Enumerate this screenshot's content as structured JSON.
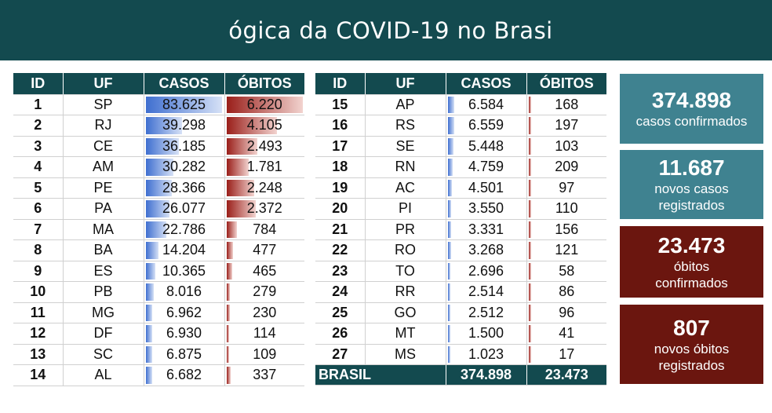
{
  "header": {
    "title": "ógica da COVID-19 no Brasi"
  },
  "columns": {
    "id": "ID",
    "uf": "UF",
    "casos": "CASOS",
    "obitos": "ÓBITOS"
  },
  "left_rows": [
    {
      "id": "1",
      "uf": "SP",
      "casos": "83.625",
      "obitos": "6.220",
      "casos_frac": 1.0,
      "obitos_frac": 1.0
    },
    {
      "id": "2",
      "uf": "RJ",
      "casos": "39.298",
      "obitos": "4.105",
      "casos_frac": 0.47,
      "obitos_frac": 0.66
    },
    {
      "id": "3",
      "uf": "CE",
      "casos": "36.185",
      "obitos": "2.493",
      "casos_frac": 0.43,
      "obitos_frac": 0.4
    },
    {
      "id": "4",
      "uf": "AM",
      "casos": "30.282",
      "obitos": "1.781",
      "casos_frac": 0.36,
      "obitos_frac": 0.29
    },
    {
      "id": "5",
      "uf": "PE",
      "casos": "28.366",
      "obitos": "2.248",
      "casos_frac": 0.34,
      "obitos_frac": 0.36
    },
    {
      "id": "6",
      "uf": "PA",
      "casos": "26.077",
      "obitos": "2.372",
      "casos_frac": 0.31,
      "obitos_frac": 0.38
    },
    {
      "id": "7",
      "uf": "MA",
      "casos": "22.786",
      "obitos": "784",
      "casos_frac": 0.27,
      "obitos_frac": 0.13
    },
    {
      "id": "8",
      "uf": "BA",
      "casos": "14.204",
      "obitos": "477",
      "casos_frac": 0.17,
      "obitos_frac": 0.08
    },
    {
      "id": "9",
      "uf": "ES",
      "casos": "10.365",
      "obitos": "465",
      "casos_frac": 0.12,
      "obitos_frac": 0.07
    },
    {
      "id": "10",
      "uf": "PB",
      "casos": "8.016",
      "obitos": "279",
      "casos_frac": 0.1,
      "obitos_frac": 0.04
    },
    {
      "id": "11",
      "uf": "MG",
      "casos": "6.962",
      "obitos": "230",
      "casos_frac": 0.08,
      "obitos_frac": 0.04
    },
    {
      "id": "12",
      "uf": "DF",
      "casos": "6.930",
      "obitos": "114",
      "casos_frac": 0.08,
      "obitos_frac": 0.02
    },
    {
      "id": "13",
      "uf": "SC",
      "casos": "6.875",
      "obitos": "109",
      "casos_frac": 0.08,
      "obitos_frac": 0.02
    },
    {
      "id": "14",
      "uf": "AL",
      "casos": "6.682",
      "obitos": "337",
      "casos_frac": 0.08,
      "obitos_frac": 0.05
    }
  ],
  "right_rows": [
    {
      "id": "15",
      "uf": "AP",
      "casos": "6.584",
      "obitos": "168",
      "casos_frac": 0.08,
      "obitos_frac": 0.03
    },
    {
      "id": "16",
      "uf": "RS",
      "casos": "6.559",
      "obitos": "197",
      "casos_frac": 0.08,
      "obitos_frac": 0.03
    },
    {
      "id": "17",
      "uf": "SE",
      "casos": "5.448",
      "obitos": "103",
      "casos_frac": 0.07,
      "obitos_frac": 0.02
    },
    {
      "id": "18",
      "uf": "RN",
      "casos": "4.759",
      "obitos": "209",
      "casos_frac": 0.06,
      "obitos_frac": 0.03
    },
    {
      "id": "19",
      "uf": "AC",
      "casos": "4.501",
      "obitos": "97",
      "casos_frac": 0.05,
      "obitos_frac": 0.02
    },
    {
      "id": "20",
      "uf": "PI",
      "casos": "3.550",
      "obitos": "110",
      "casos_frac": 0.04,
      "obitos_frac": 0.02
    },
    {
      "id": "21",
      "uf": "PR",
      "casos": "3.331",
      "obitos": "156",
      "casos_frac": 0.04,
      "obitos_frac": 0.03
    },
    {
      "id": "22",
      "uf": "RO",
      "casos": "3.268",
      "obitos": "121",
      "casos_frac": 0.04,
      "obitos_frac": 0.02
    },
    {
      "id": "23",
      "uf": "TO",
      "casos": "2.696",
      "obitos": "58",
      "casos_frac": 0.03,
      "obitos_frac": 0.01
    },
    {
      "id": "24",
      "uf": "RR",
      "casos": "2.514",
      "obitos": "86",
      "casos_frac": 0.03,
      "obitos_frac": 0.01
    },
    {
      "id": "25",
      "uf": "GO",
      "casos": "2.512",
      "obitos": "96",
      "casos_frac": 0.03,
      "obitos_frac": 0.02
    },
    {
      "id": "26",
      "uf": "MT",
      "casos": "1.500",
      "obitos": "41",
      "casos_frac": 0.02,
      "obitos_frac": 0.01
    },
    {
      "id": "27",
      "uf": "MS",
      "casos": "1.023",
      "obitos": "17",
      "casos_frac": 0.01,
      "obitos_frac": 0.005
    }
  ],
  "total": {
    "label": "BRASIL",
    "casos": "374.898",
    "obitos": "23.473"
  },
  "cards": {
    "casos": {
      "value": "374.898",
      "line1": "casos confirmados"
    },
    "novos_casos": {
      "value": "11.687",
      "line1": "novos casos",
      "line2": "registrados"
    },
    "obitos": {
      "value": "23.473",
      "line1": "óbitos",
      "line2": "confirmados"
    },
    "novos_obitos": {
      "value": "807",
      "line1": "novos óbitos",
      "line2": "registrados"
    }
  },
  "colors": {
    "header_bg": "#134a4f",
    "card_teal": "#3f8290",
    "card_maroon": "#6b160f",
    "casos_bar": "#3f6fd0",
    "obitos_bar": "#9a1f1a"
  }
}
